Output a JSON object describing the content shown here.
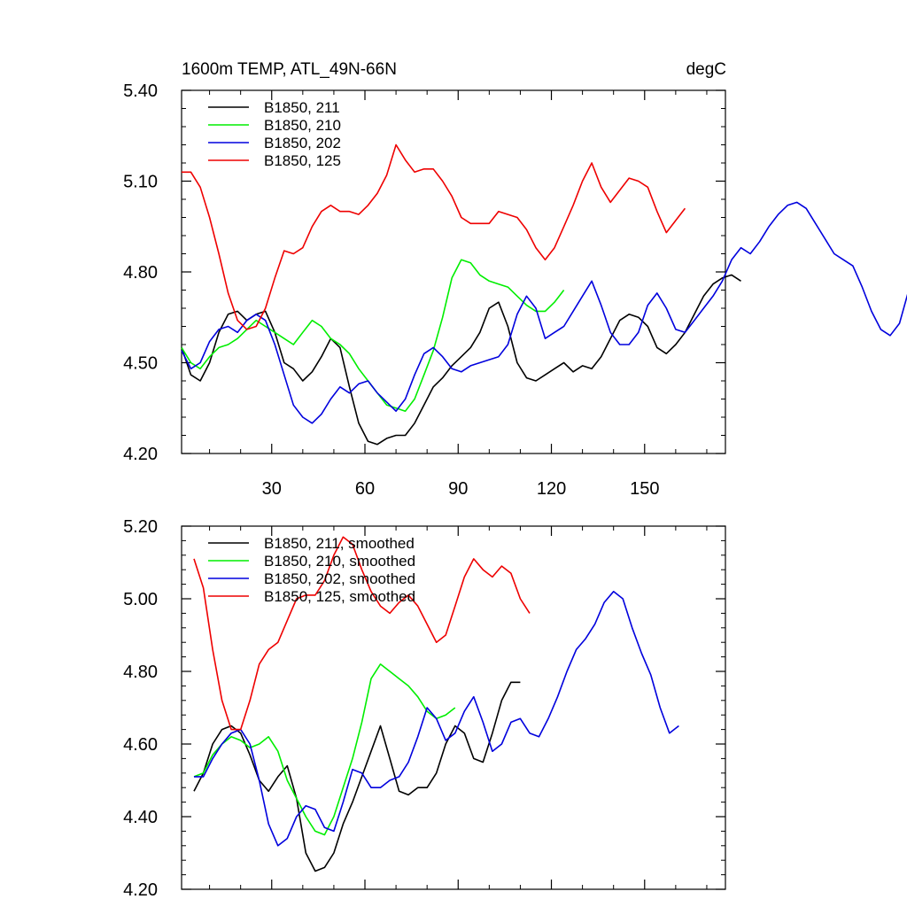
{
  "units": "degC",
  "chart_data": [
    {
      "type": "line",
      "title": "1600m TEMP, ATL_49N-66N",
      "units_label": "degC",
      "xlim": [
        1,
        176
      ],
      "ylim": [
        4.2,
        5.4
      ],
      "x_ticks": [
        30,
        60,
        90,
        120,
        150
      ],
      "x_tick_labels": [
        "30",
        "60",
        "90",
        "120",
        "150"
      ],
      "y_ticks": [
        4.2,
        4.5,
        4.8,
        5.1,
        5.4
      ],
      "y_tick_labels": [
        "4.20",
        "4.50",
        "4.80",
        "5.10",
        "5.40"
      ],
      "legend_position": "top-left",
      "series": [
        {
          "name": "B1850, 211",
          "color": "#000000",
          "x0": 1,
          "values": [
            4.55,
            4.46,
            4.44,
            4.5,
            4.6,
            4.66,
            4.67,
            4.64,
            4.66,
            4.67,
            4.6,
            4.5,
            4.48,
            4.44,
            4.47,
            4.52,
            4.58,
            4.55,
            4.42,
            4.3,
            4.24,
            4.23,
            4.25,
            4.26,
            4.26,
            4.3,
            4.36,
            4.42,
            4.45,
            4.49,
            4.52,
            4.55,
            4.6,
            4.68,
            4.7,
            4.62,
            4.5,
            4.45,
            4.44,
            4.46,
            4.48,
            4.5,
            4.47,
            4.49,
            4.48,
            4.52,
            4.58,
            4.64,
            4.66,
            4.65,
            4.62,
            4.55,
            4.53,
            4.56,
            4.6,
            4.66,
            4.72,
            4.76,
            4.78,
            4.79,
            4.77
          ]
        },
        {
          "name": "B1850, 210",
          "color": "#00ee00",
          "x0": 1,
          "values": [
            4.55,
            4.5,
            4.48,
            4.52,
            4.55,
            4.56,
            4.58,
            4.61,
            4.64,
            4.62,
            4.6,
            4.58,
            4.56,
            4.6,
            4.64,
            4.62,
            4.58,
            4.56,
            4.53,
            4.48,
            4.44,
            4.4,
            4.36,
            4.35,
            4.34,
            4.38,
            4.46,
            4.54,
            4.65,
            4.78,
            4.84,
            4.83,
            4.79,
            4.77,
            4.76,
            4.75,
            4.72,
            4.69,
            4.67,
            4.67,
            4.7,
            4.74
          ]
        },
        {
          "name": "B1850, 202",
          "color": "#0000dd",
          "x0": 1,
          "values": [
            4.54,
            4.48,
            4.5,
            4.57,
            4.61,
            4.62,
            4.6,
            4.64,
            4.66,
            4.64,
            4.56,
            4.46,
            4.36,
            4.32,
            4.3,
            4.33,
            4.38,
            4.42,
            4.4,
            4.43,
            4.44,
            4.4,
            4.37,
            4.34,
            4.38,
            4.46,
            4.53,
            4.55,
            4.52,
            4.48,
            4.47,
            4.49,
            4.5,
            4.51,
            4.52,
            4.56,
            4.66,
            4.72,
            4.68,
            4.58,
            4.6,
            4.62,
            4.67,
            4.72,
            4.77,
            4.69,
            4.6,
            4.56,
            4.56,
            4.6,
            4.69,
            4.73,
            4.68,
            4.61,
            4.6,
            4.64,
            4.68,
            4.72,
            4.77,
            4.84,
            4.88,
            4.86,
            4.9,
            4.95,
            4.99,
            5.02,
            5.03,
            5.01,
            4.96,
            4.91,
            4.86,
            4.84,
            4.82,
            4.75,
            4.67,
            4.61,
            4.59,
            4.63,
            4.74
          ]
        },
        {
          "name": "B1850, 125",
          "color": "#ee0000",
          "x0": 1,
          "values": [
            5.13,
            5.13,
            5.08,
            4.98,
            4.86,
            4.73,
            4.64,
            4.61,
            4.62,
            4.68,
            4.78,
            4.87,
            4.86,
            4.88,
            4.95,
            5.0,
            5.02,
            5.0,
            5.0,
            4.99,
            5.02,
            5.06,
            5.12,
            5.22,
            5.17,
            5.13,
            5.14,
            5.14,
            5.1,
            5.05,
            4.98,
            4.96,
            4.96,
            4.96,
            5.0,
            4.99,
            4.98,
            4.94,
            4.88,
            4.84,
            4.88,
            4.95,
            5.02,
            5.1,
            5.16,
            5.08,
            5.03,
            5.07,
            5.11,
            5.1,
            5.08,
            5.0,
            4.93,
            4.97,
            5.01
          ]
        }
      ]
    },
    {
      "type": "line",
      "title": "",
      "xlim": [
        1,
        176
      ],
      "ylim": [
        4.2,
        5.2
      ],
      "x_ticks": [
        30,
        60,
        90,
        120,
        150
      ],
      "y_ticks": [
        4.2,
        4.4,
        4.6,
        4.8,
        5.0,
        5.2
      ],
      "y_tick_labels": [
        "4.20",
        "4.40",
        "4.60",
        "4.80",
        "5.00",
        "5.20"
      ],
      "legend_position": "top-left",
      "series": [
        {
          "name": "B1850, 211, smoothed",
          "color": "#000000",
          "x0": 5,
          "values": [
            4.47,
            4.52,
            4.6,
            4.64,
            4.65,
            4.63,
            4.57,
            4.5,
            4.47,
            4.51,
            4.54,
            4.45,
            4.3,
            4.25,
            4.26,
            4.3,
            4.38,
            4.44,
            4.51,
            4.58,
            4.65,
            4.56,
            4.47,
            4.46,
            4.48,
            4.48,
            4.52,
            4.6,
            4.65,
            4.63,
            4.56,
            4.55,
            4.63,
            4.72,
            4.77,
            4.77
          ]
        },
        {
          "name": "B1850, 210, smoothed",
          "color": "#00ee00",
          "x0": 5,
          "values": [
            4.51,
            4.52,
            4.57,
            4.6,
            4.62,
            4.61,
            4.59,
            4.6,
            4.62,
            4.58,
            4.5,
            4.45,
            4.4,
            4.36,
            4.35,
            4.4,
            4.48,
            4.56,
            4.66,
            4.78,
            4.82,
            4.8,
            4.78,
            4.76,
            4.73,
            4.69,
            4.67,
            4.68,
            4.7
          ]
        },
        {
          "name": "B1850, 202, smoothed",
          "color": "#0000dd",
          "x0": 5,
          "values": [
            4.51,
            4.51,
            4.56,
            4.6,
            4.63,
            4.64,
            4.6,
            4.5,
            4.38,
            4.32,
            4.34,
            4.4,
            4.43,
            4.42,
            4.37,
            4.36,
            4.44,
            4.53,
            4.52,
            4.48,
            4.48,
            4.5,
            4.51,
            4.55,
            4.62,
            4.7,
            4.67,
            4.61,
            4.63,
            4.69,
            4.73,
            4.66,
            4.58,
            4.6,
            4.66,
            4.67,
            4.63,
            4.62,
            4.67,
            4.73,
            4.8,
            4.86,
            4.89,
            4.93,
            4.99,
            5.02,
            5.0,
            4.92,
            4.85,
            4.79,
            4.7,
            4.63,
            4.65
          ]
        },
        {
          "name": "B1850, 125, smoothed",
          "color": "#ee0000",
          "x0": 5,
          "values": [
            5.11,
            5.03,
            4.86,
            4.72,
            4.64,
            4.64,
            4.72,
            4.82,
            4.86,
            4.88,
            4.94,
            5.0,
            5.01,
            5.01,
            5.05,
            5.12,
            5.17,
            5.15,
            5.08,
            5.02,
            4.98,
            4.96,
            4.99,
            5.01,
            4.98,
            4.93,
            4.88,
            4.9,
            4.98,
            5.06,
            5.11,
            5.08,
            5.06,
            5.09,
            5.07,
            5.0,
            4.96
          ]
        }
      ]
    }
  ]
}
